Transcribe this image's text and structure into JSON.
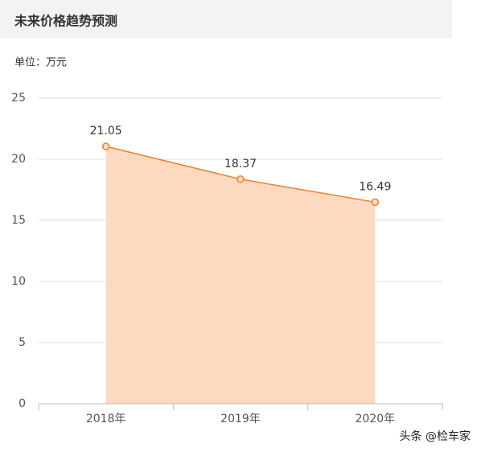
{
  "chart_data": {
    "type": "area-line",
    "title": "未来价格趋势预测",
    "unit": "单位：万元",
    "categories": [
      "2018年",
      "2019年",
      "2020年"
    ],
    "values": [
      21.05,
      18.37,
      16.49
    ],
    "line_color": "#f07f2d",
    "fill_color": "#fdd9bf",
    "ylim": [
      0,
      25
    ],
    "yticks": [
      0,
      5,
      10,
      15,
      20,
      25
    ],
    "grid": true,
    "watermark": "头条 @检车家"
  }
}
